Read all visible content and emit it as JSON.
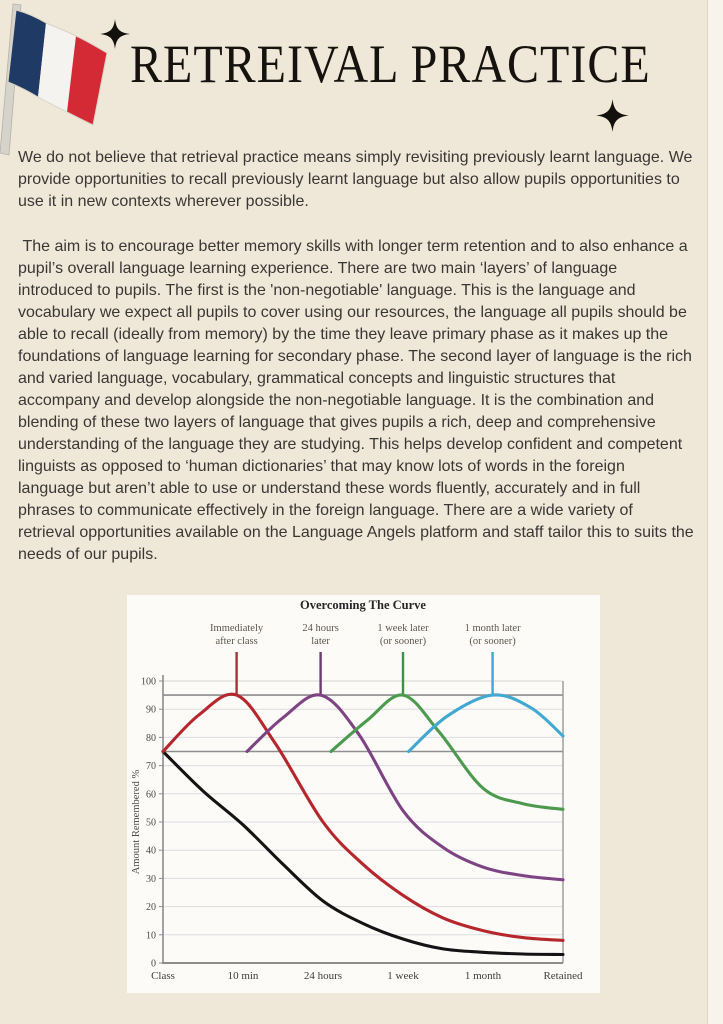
{
  "page": {
    "title": "RETREIVAL PRACTICE",
    "background_color": "#efe8d9",
    "text_color": "#3a3633"
  },
  "decorations": {
    "flag_icon": "french-flag-icon",
    "flag_colors": {
      "blue": "#203a66",
      "white": "#f5f3ef",
      "red": "#d42a35",
      "pole": "#d6d3cc"
    },
    "sparkle_icon": "sparkle-icon",
    "sparkle_color": "#14110d"
  },
  "paragraphs": {
    "p1": "We do not believe that retrieval practice means simply revisiting previously learnt language. We provide opportunities to recall previously learnt language but also allow pupils opportunities to use it in new contexts wherever possible.",
    "p2": " The aim is to encourage better memory skills with longer term retention and to also enhance a pupil’s overall language learning experience. There are two main ‘layers’ of language introduced to pupils. The first is the 'non-negotiable' language. This is the language and vocabulary we expect all pupils to cover using our resources, the language all pupils should be able to recall (ideally from memory) by the time they leave primary phase as it makes up the foundations of language learning for secondary phase. The second layer of language is the rich and varied language, vocabulary, grammatical concepts and linguistic structures that accompany and develop alongside the non-negotiable language. It is the combination and blending of these two layers of language that gives pupils a rich, deep and comprehensive understanding of the language they are studying. This helps develop confident and competent linguists as opposed to ‘human dictionaries’ that may know lots of words in the foreign language but aren’t able to use or understand these words fluently, accurately and in full phrases to communicate effectively in the foreign language. There are a wide variety of retrieval opportunities available on the Language Angels platform and staff tailor this to suits the needs of our pupils."
  },
  "chart_data": {
    "type": "line",
    "title": "Overcoming The Curve",
    "xlabel": "",
    "ylabel": "Amount Remembered %",
    "x_tick_labels": [
      "Class",
      "10 min",
      "24 hours",
      "1 week",
      "1 month",
      "Retained"
    ],
    "y_ticks": [
      0,
      10,
      20,
      30,
      40,
      50,
      60,
      70,
      80,
      90,
      100
    ],
    "ylim": [
      0,
      100
    ],
    "grid": true,
    "legend": "none",
    "reference_lines_y": [
      95,
      75
    ],
    "review_markers": [
      {
        "label_lines": [
          "Immediately",
          "after class"
        ],
        "x": 0.92,
        "color": "#9e3836"
      },
      {
        "label_lines": [
          "24 hours",
          "later"
        ],
        "x": 1.97,
        "color": "#6f3a6f"
      },
      {
        "label_lines": [
          "1 week later",
          "(or sooner)"
        ],
        "x": 3.0,
        "color": "#3f8f44"
      },
      {
        "label_lines": [
          "1 month later",
          "(or sooner)"
        ],
        "x": 4.12,
        "color": "#3fa9cf"
      }
    ],
    "series": [
      {
        "name": "forgetting-curve-no-review",
        "color": "#141414",
        "points": [
          [
            0,
            75
          ],
          [
            0.5,
            61
          ],
          [
            1,
            49
          ],
          [
            1.5,
            35
          ],
          [
            2,
            22
          ],
          [
            2.5,
            14
          ],
          [
            3,
            8.5
          ],
          [
            3.5,
            5
          ],
          [
            4,
            3.8
          ],
          [
            4.5,
            3.2
          ],
          [
            5,
            3
          ]
        ]
      },
      {
        "name": "review-immediately-after-class",
        "color": "#b5272d",
        "points": [
          [
            0,
            75
          ],
          [
            0.45,
            88
          ],
          [
            0.92,
            95
          ],
          [
            1.4,
            78
          ],
          [
            2,
            50
          ],
          [
            2.5,
            35
          ],
          [
            3,
            24
          ],
          [
            3.5,
            16
          ],
          [
            4,
            11.5
          ],
          [
            4.5,
            9
          ],
          [
            5,
            8
          ]
        ]
      },
      {
        "name": "review-24-hours-later",
        "color": "#7e4383",
        "points": [
          [
            1.05,
            75
          ],
          [
            1.5,
            87
          ],
          [
            1.97,
            95
          ],
          [
            2.45,
            81
          ],
          [
            3,
            54
          ],
          [
            3.5,
            41
          ],
          [
            4,
            34
          ],
          [
            4.5,
            31
          ],
          [
            5,
            29.5
          ]
        ]
      },
      {
        "name": "review-1-week-later",
        "color": "#4c9a4e",
        "points": [
          [
            2.1,
            75
          ],
          [
            2.55,
            86
          ],
          [
            3,
            95
          ],
          [
            3.45,
            82
          ],
          [
            4,
            62
          ],
          [
            4.5,
            56.5
          ],
          [
            5,
            54.5
          ]
        ]
      },
      {
        "name": "review-1-month-later",
        "color": "#41a8d2",
        "points": [
          [
            3.07,
            75
          ],
          [
            3.55,
            87.5
          ],
          [
            4.12,
            95
          ],
          [
            4.6,
            90.5
          ],
          [
            5,
            80.5
          ]
        ]
      }
    ]
  }
}
